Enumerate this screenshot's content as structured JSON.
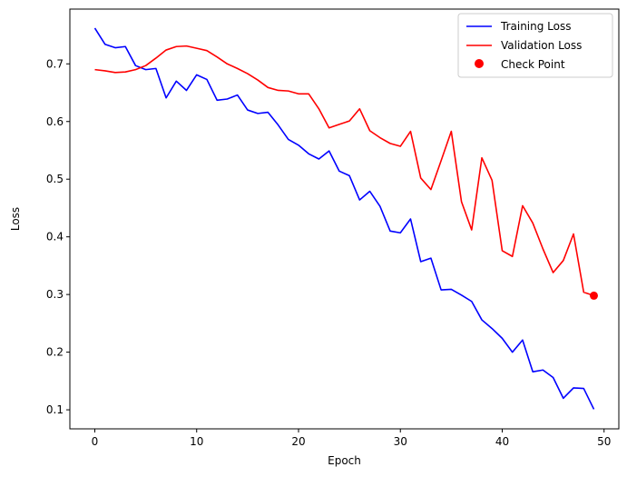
{
  "chart_data": {
    "type": "line",
    "title": "",
    "xlabel": "Epoch",
    "ylabel": "Loss",
    "xlim": [
      -2.45,
      51.45
    ],
    "ylim": [
      0.067,
      0.795
    ],
    "xticks": [
      0,
      10,
      20,
      30,
      40,
      50
    ],
    "yticks": [
      0.1,
      0.2,
      0.3,
      0.4,
      0.5,
      0.6,
      0.7
    ],
    "grid": false,
    "legend_position": "top-right",
    "x": [
      0,
      1,
      2,
      3,
      4,
      5,
      6,
      7,
      8,
      9,
      10,
      11,
      12,
      13,
      14,
      15,
      16,
      17,
      18,
      19,
      20,
      21,
      22,
      23,
      24,
      25,
      26,
      27,
      28,
      29,
      30,
      31,
      32,
      33,
      34,
      35,
      36,
      37,
      38,
      39,
      40,
      41,
      42,
      43,
      44,
      45,
      46,
      47,
      48,
      49
    ],
    "series": [
      {
        "name": "Training Loss",
        "color": "#0000ff",
        "values": [
          0.762,
          0.734,
          0.728,
          0.73,
          0.697,
          0.69,
          0.692,
          0.641,
          0.67,
          0.654,
          0.681,
          0.673,
          0.637,
          0.639,
          0.646,
          0.62,
          0.614,
          0.616,
          0.594,
          0.569,
          0.559,
          0.544,
          0.535,
          0.549,
          0.514,
          0.506,
          0.464,
          0.479,
          0.453,
          0.41,
          0.407,
          0.431,
          0.357,
          0.363,
          0.308,
          0.309,
          0.299,
          0.288,
          0.256,
          0.241,
          0.224,
          0.2,
          0.221,
          0.166,
          0.169,
          0.156,
          0.12,
          0.138,
          0.137,
          0.101
        ]
      },
      {
        "name": "Validation Loss",
        "color": "#ff0000",
        "values": [
          0.69,
          0.688,
          0.685,
          0.686,
          0.69,
          0.697,
          0.71,
          0.724,
          0.73,
          0.731,
          0.727,
          0.723,
          0.712,
          0.7,
          0.692,
          0.683,
          0.672,
          0.659,
          0.654,
          0.653,
          0.648,
          0.648,
          0.622,
          0.589,
          0.595,
          0.601,
          0.622,
          0.584,
          0.572,
          0.562,
          0.557,
          0.583,
          0.502,
          0.482,
          0.532,
          0.583,
          0.461,
          0.412,
          0.537,
          0.498,
          0.376,
          0.366,
          0.454,
          0.424,
          0.379,
          0.338,
          0.359,
          0.405,
          0.304,
          0.298
        ]
      }
    ],
    "checkpoint": {
      "name": "Check Point",
      "color": "#ff0000",
      "x": 49,
      "y": 0.298
    }
  }
}
